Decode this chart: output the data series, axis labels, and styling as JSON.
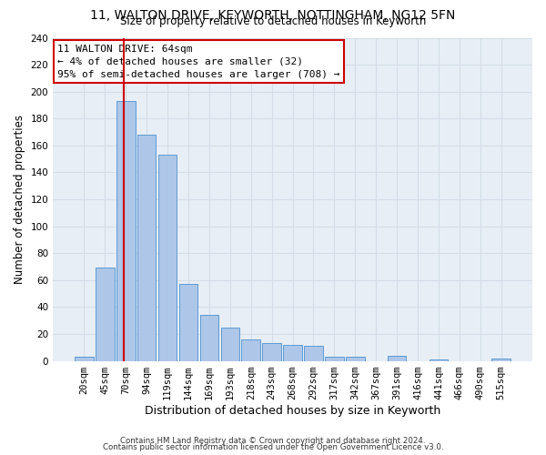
{
  "title_line1": "11, WALTON DRIVE, KEYWORTH, NOTTINGHAM, NG12 5FN",
  "title_line2": "Size of property relative to detached houses in Keyworth",
  "xlabel": "Distribution of detached houses by size in Keyworth",
  "ylabel": "Number of detached properties",
  "bar_labels": [
    "20sqm",
    "45sqm",
    "70sqm",
    "94sqm",
    "119sqm",
    "144sqm",
    "169sqm",
    "193sqm",
    "218sqm",
    "243sqm",
    "268sqm",
    "292sqm",
    "317sqm",
    "342sqm",
    "367sqm",
    "391sqm",
    "416sqm",
    "441sqm",
    "466sqm",
    "490sqm",
    "515sqm"
  ],
  "bar_values": [
    3,
    69,
    193,
    168,
    153,
    57,
    34,
    25,
    16,
    13,
    12,
    11,
    3,
    3,
    0,
    4,
    0,
    1,
    0,
    0,
    2
  ],
  "bar_color": "#aec6e8",
  "bar_edge_color": "#5b9bd5",
  "annotation_line1": "11 WALTON DRIVE: 64sqm",
  "annotation_line2": "← 4% of detached houses are smaller (32)",
  "annotation_line3": "95% of semi-detached houses are larger (708) →",
  "annotation_box_color": "#ffffff",
  "annotation_box_edge_color": "#cc0000",
  "red_line_color": "#cc0000",
  "grid_color": "#d4dce8",
  "background_color": "#e8eef5",
  "ylim": [
    0,
    240
  ],
  "yticks": [
    0,
    20,
    40,
    60,
    80,
    100,
    120,
    140,
    160,
    180,
    200,
    220,
    240
  ],
  "footer_line1": "Contains HM Land Registry data © Crown copyright and database right 2024.",
  "footer_line2": "Contains public sector information licensed under the Open Government Licence v3.0."
}
